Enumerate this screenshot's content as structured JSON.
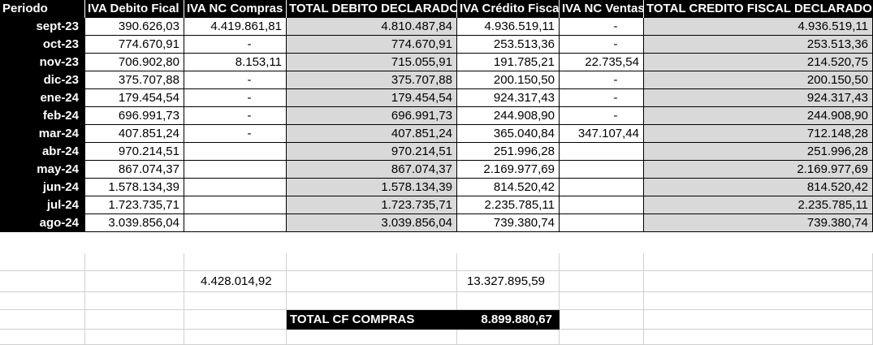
{
  "headers": [
    "Periodo",
    "IVA Debito Fical",
    "IVA NC Compras",
    "TOTAL DEBITO DECLARADO",
    "IVA Crédito Fiscal",
    "IVA NC Ventas",
    "TOTAL CREDITO FISCAL DECLARADO"
  ],
  "rows": [
    {
      "period": "sept-23",
      "debito": "390.626,03",
      "nc_compras": "4.419.861,81",
      "total_debito": "4.810.487,84",
      "credito": "4.936.519,11",
      "nc_ventas": "-",
      "total_credito": "4.936.519,11"
    },
    {
      "period": "oct-23",
      "debito": "774.670,91",
      "nc_compras": "-",
      "total_debito": "774.670,91",
      "credito": "253.513,36",
      "nc_ventas": "-",
      "total_credito": "253.513,36"
    },
    {
      "period": "nov-23",
      "debito": "706.902,80",
      "nc_compras": "8.153,11",
      "total_debito": "715.055,91",
      "credito": "191.785,21",
      "nc_ventas": "22.735,54",
      "total_credito": "214.520,75"
    },
    {
      "period": "dic-23",
      "debito": "375.707,88",
      "nc_compras": "-",
      "total_debito": "375.707,88",
      "credito": "200.150,50",
      "nc_ventas": "-",
      "total_credito": "200.150,50"
    },
    {
      "period": "ene-24",
      "debito": "179.454,54",
      "nc_compras": "-",
      "total_debito": "179.454,54",
      "credito": "924.317,43",
      "nc_ventas": "-",
      "total_credito": "924.317,43"
    },
    {
      "period": "feb-24",
      "debito": "696.991,73",
      "nc_compras": "-",
      "total_debito": "696.991,73",
      "credito": "244.908,90",
      "nc_ventas": "-",
      "total_credito": "244.908,90"
    },
    {
      "period": "mar-24",
      "debito": "407.851,24",
      "nc_compras": "-",
      "total_debito": "407.851,24",
      "credito": "365.040,84",
      "nc_ventas": "347.107,44",
      "total_credito": "712.148,28"
    },
    {
      "period": "abr-24",
      "debito": "970.214,51",
      "nc_compras": "",
      "total_debito": "970.214,51",
      "credito": "251.996,28",
      "nc_ventas": "",
      "total_credito": "251.996,28"
    },
    {
      "period": "may-24",
      "debito": "867.074,37",
      "nc_compras": "",
      "total_debito": "867.074,37",
      "credito": "2.169.977,69",
      "nc_ventas": "",
      "total_credito": "2.169.977,69"
    },
    {
      "period": "jun-24",
      "debito": "1.578.134,39",
      "nc_compras": "",
      "total_debito": "1.578.134,39",
      "credito": "814.520,42",
      "nc_ventas": "",
      "total_credito": "814.520,42"
    },
    {
      "period": "jul-24",
      "debito": "1.723.735,71",
      "nc_compras": "",
      "total_debito": "1.723.735,71",
      "credito": "2.235.785,11",
      "nc_ventas": "",
      "total_credito": "2.235.785,11"
    },
    {
      "period": "ago-24",
      "debito": "3.039.856,04",
      "nc_compras": "",
      "total_debito": "3.039.856,04",
      "credito": "739.380,74",
      "nc_ventas": "",
      "total_credito": "739.380,74"
    }
  ],
  "sums": {
    "nc_compras_total": "4.428.014,92",
    "credito_total": "13.327.895,59"
  },
  "total_cf": {
    "label": "TOTAL CF COMPRAS",
    "value": "8.899.880,67"
  }
}
